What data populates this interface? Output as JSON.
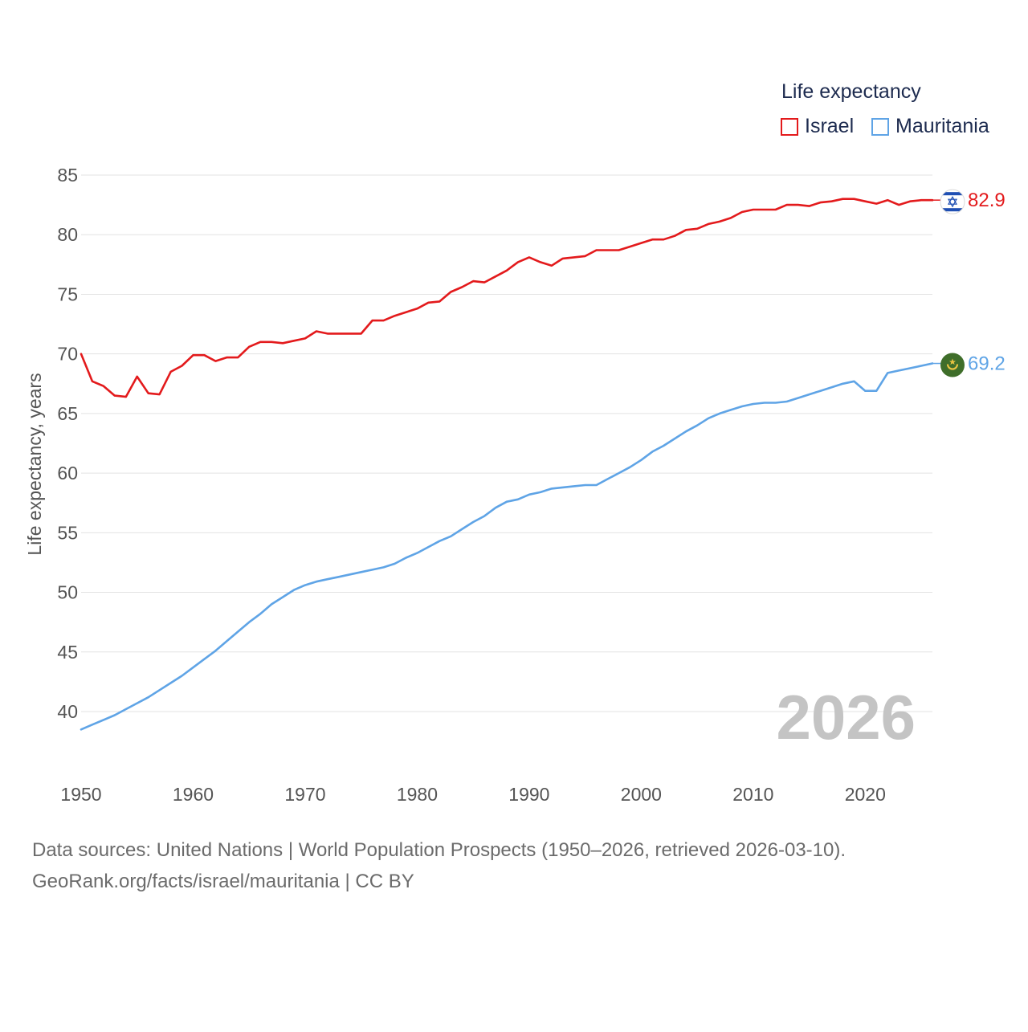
{
  "chart_data": {
    "type": "line",
    "legend_title": "Life expectancy",
    "ylabel": "Life expectancy, years",
    "xlabel": "",
    "xlim": [
      1950,
      2026
    ],
    "ylim": [
      36,
      87
    ],
    "x_ticks": [
      1950,
      1960,
      1970,
      1980,
      1990,
      2000,
      2010,
      2020
    ],
    "y_ticks": [
      40,
      45,
      50,
      55,
      60,
      65,
      70,
      75,
      80,
      85
    ],
    "watermark_year": "2026",
    "grid": true,
    "legend_position": "top-right",
    "x": [
      1950,
      1951,
      1952,
      1953,
      1954,
      1955,
      1956,
      1957,
      1958,
      1959,
      1960,
      1961,
      1962,
      1963,
      1964,
      1965,
      1966,
      1967,
      1968,
      1969,
      1970,
      1971,
      1972,
      1973,
      1974,
      1975,
      1976,
      1977,
      1978,
      1979,
      1980,
      1981,
      1982,
      1983,
      1984,
      1985,
      1986,
      1987,
      1988,
      1989,
      1990,
      1991,
      1992,
      1993,
      1994,
      1995,
      1996,
      1997,
      1998,
      1999,
      2000,
      2001,
      2002,
      2003,
      2004,
      2005,
      2006,
      2007,
      2008,
      2009,
      2010,
      2011,
      2012,
      2013,
      2014,
      2015,
      2016,
      2017,
      2018,
      2019,
      2020,
      2021,
      2022,
      2023,
      2024,
      2025,
      2026
    ],
    "series": [
      {
        "name": "Israel",
        "color": "#e31a1c",
        "end_label": "82.9",
        "flag": "israel-flag",
        "values": [
          70.0,
          67.7,
          67.3,
          66.5,
          66.4,
          68.1,
          66.7,
          66.6,
          68.5,
          69.0,
          69.9,
          69.9,
          69.4,
          69.7,
          69.7,
          70.6,
          71.0,
          71.0,
          70.9,
          71.1,
          71.3,
          71.9,
          71.7,
          71.7,
          71.7,
          71.7,
          72.8,
          72.8,
          73.2,
          73.5,
          73.8,
          74.3,
          74.4,
          75.2,
          75.6,
          76.1,
          76.0,
          76.5,
          77.0,
          77.7,
          78.1,
          77.7,
          77.4,
          78.0,
          78.1,
          78.2,
          78.7,
          78.7,
          78.7,
          79.0,
          79.3,
          79.6,
          79.6,
          79.9,
          80.4,
          80.5,
          80.9,
          81.1,
          81.4,
          81.9,
          82.1,
          82.1,
          82.1,
          82.5,
          82.5,
          82.4,
          82.7,
          82.8,
          83.0,
          83.0,
          82.8,
          82.6,
          82.9,
          82.5,
          82.8,
          82.9,
          82.9
        ]
      },
      {
        "name": "Mauritania",
        "color": "#5fa4e6",
        "end_label": "69.2",
        "flag": "mauritania-flag",
        "values": [
          38.5,
          38.9,
          39.3,
          39.7,
          40.2,
          40.7,
          41.2,
          41.8,
          42.4,
          43.0,
          43.7,
          44.4,
          45.1,
          45.9,
          46.7,
          47.5,
          48.2,
          49.0,
          49.6,
          50.2,
          50.6,
          50.9,
          51.1,
          51.3,
          51.5,
          51.7,
          51.9,
          52.1,
          52.4,
          52.9,
          53.3,
          53.8,
          54.3,
          54.7,
          55.3,
          55.9,
          56.4,
          57.1,
          57.6,
          57.8,
          58.2,
          58.4,
          58.7,
          58.8,
          58.9,
          59.0,
          59.0,
          59.5,
          60.0,
          60.5,
          61.1,
          61.8,
          62.3,
          62.9,
          63.5,
          64.0,
          64.6,
          65.0,
          65.3,
          65.6,
          65.8,
          65.9,
          65.9,
          66.0,
          66.3,
          66.6,
          66.9,
          67.2,
          67.5,
          67.7,
          66.9,
          66.9,
          68.4,
          68.6,
          68.8,
          69.0,
          69.2
        ]
      }
    ]
  },
  "footer": {
    "line1": "Data sources: United Nations | World Population Prospects (1950–2026, retrieved 2026-03-10).",
    "line2": "GeoRank.org/facts/israel/mauritania | CC BY"
  }
}
